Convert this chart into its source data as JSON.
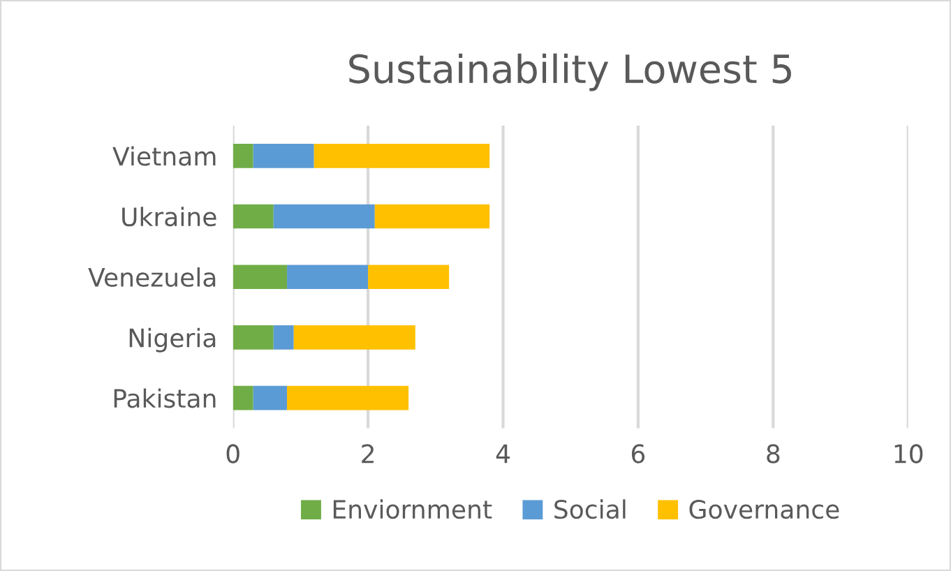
{
  "chart_data": {
    "type": "bar",
    "orientation": "horizontal",
    "stacked": true,
    "title": "Sustainability Lowest 5",
    "categories": [
      "Vietnam",
      "Ukraine",
      "Venezuela",
      "Nigeria",
      "Pakistan"
    ],
    "series": [
      {
        "name": "Enviornment",
        "color": "#70ad47",
        "values": [
          0.3,
          0.6,
          0.8,
          0.6,
          0.3
        ]
      },
      {
        "name": "Social",
        "color": "#5b9bd5",
        "values": [
          0.9,
          1.5,
          1.2,
          0.3,
          0.5
        ]
      },
      {
        "name": "Governance",
        "color": "#ffc000",
        "values": [
          2.6,
          1.7,
          1.2,
          1.8,
          1.8
        ]
      }
    ],
    "xlim": [
      0,
      10
    ],
    "xticks": [
      0,
      2,
      4,
      6,
      8,
      10
    ],
    "grid": "x",
    "legend": "bottom"
  }
}
